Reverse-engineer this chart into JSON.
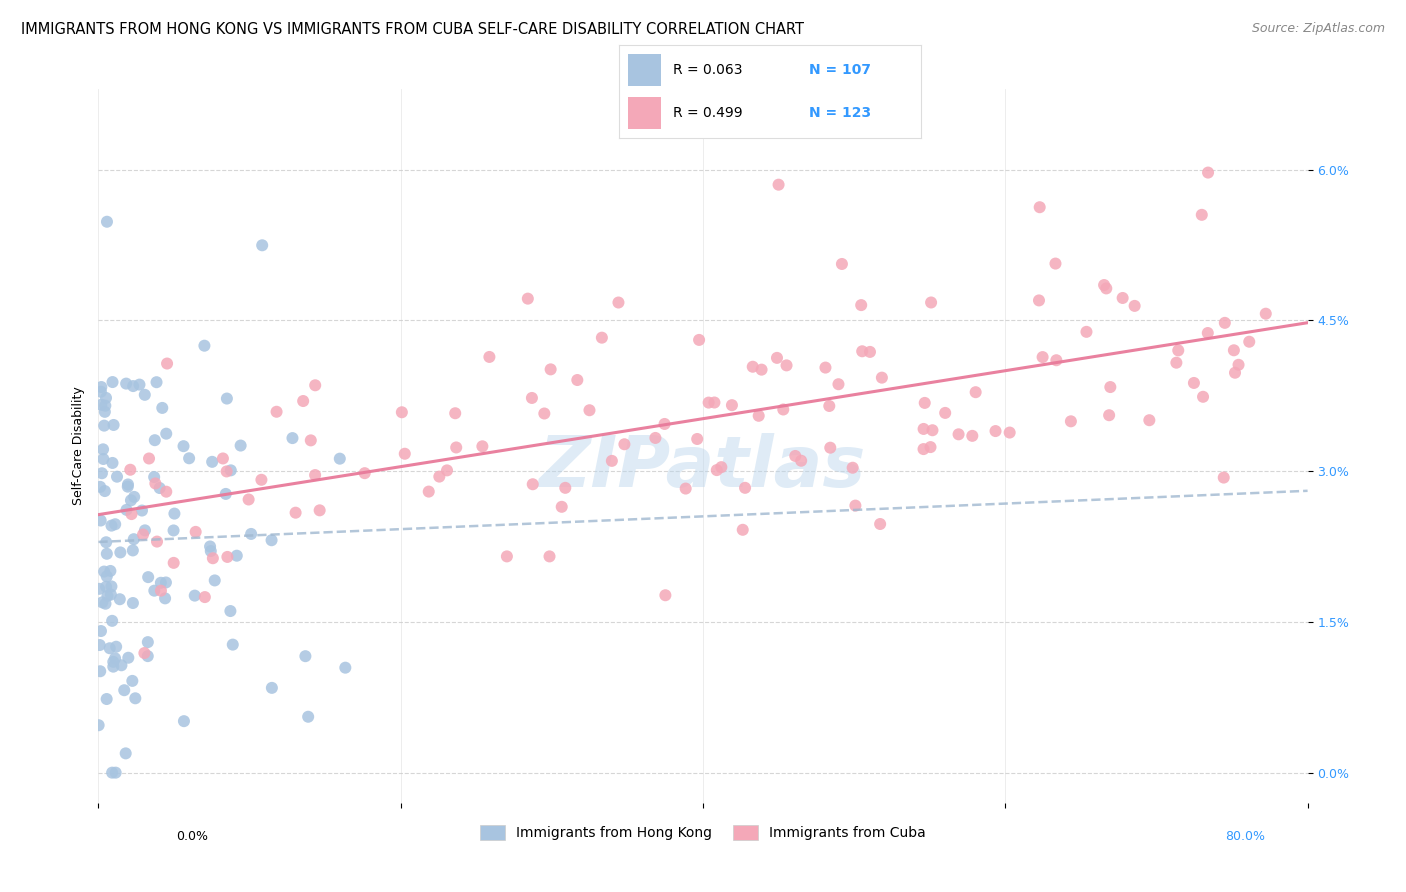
{
  "title": "IMMIGRANTS FROM HONG KONG VS IMMIGRANTS FROM CUBA SELF-CARE DISABILITY CORRELATION CHART",
  "source": "Source: ZipAtlas.com",
  "ylabel": "Self-Care Disability",
  "yticks": [
    "0.0%",
    "1.5%",
    "3.0%",
    "4.5%",
    "6.0%"
  ],
  "ytick_vals": [
    0.0,
    1.5,
    3.0,
    4.5,
    6.0
  ],
  "xlim": [
    0.0,
    80.0
  ],
  "ylim": [
    -0.3,
    6.8
  ],
  "hk_color": "#a8c4e0",
  "cuba_color": "#f4a8b8",
  "hk_line_color": "#a0b8d0",
  "cuba_line_color": "#e87a9a",
  "legend_text_color": "#3399ff",
  "hk_R": 0.063,
  "hk_N": 107,
  "cuba_R": 0.499,
  "cuba_N": 123,
  "watermark": "ZIPatlas",
  "title_fontsize": 11,
  "axis_label_fontsize": 9
}
